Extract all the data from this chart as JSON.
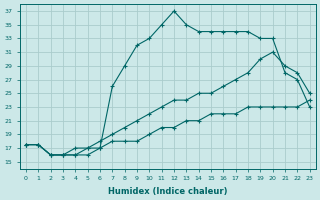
{
  "xlabel": "Humidex (Indice chaleur)",
  "bg_color": "#cce8e8",
  "grid_color": "#aacccc",
  "line_color": "#006666",
  "xlim": [
    -0.5,
    23.5
  ],
  "ylim": [
    14.0,
    38.0
  ],
  "xticks": [
    0,
    1,
    2,
    3,
    4,
    5,
    6,
    7,
    8,
    9,
    10,
    11,
    12,
    13,
    14,
    15,
    16,
    17,
    18,
    19,
    20,
    21,
    22,
    23
  ],
  "yticks": [
    15,
    17,
    19,
    21,
    23,
    25,
    27,
    29,
    31,
    33,
    35,
    37
  ],
  "line1_x": [
    0,
    1,
    2,
    3,
    4,
    5,
    6,
    7,
    8,
    9,
    10,
    11,
    12,
    13,
    14,
    15,
    16,
    17,
    18,
    19,
    20,
    21,
    22,
    23
  ],
  "line1_y": [
    17.5,
    17.5,
    16,
    16,
    16,
    16,
    17,
    26,
    29,
    32,
    33,
    35,
    37,
    35,
    34,
    34,
    34,
    34,
    34,
    33,
    33,
    28,
    27,
    23
  ],
  "line2_x": [
    0,
    1,
    2,
    3,
    4,
    5,
    6,
    7,
    8,
    9,
    10,
    11,
    12,
    13,
    14,
    15,
    16,
    17,
    18,
    19,
    20,
    21,
    22,
    23
  ],
  "line2_y": [
    17.5,
    17.5,
    16,
    16,
    16,
    17,
    18,
    19,
    20,
    21,
    22,
    23,
    24,
    24,
    25,
    25,
    26,
    27,
    28,
    30,
    31,
    29,
    28,
    25
  ],
  "line3_x": [
    0,
    1,
    2,
    3,
    4,
    5,
    6,
    7,
    8,
    9,
    10,
    11,
    12,
    13,
    14,
    15,
    16,
    17,
    18,
    19,
    20,
    21,
    22,
    23
  ],
  "line3_y": [
    17.5,
    17.5,
    16,
    16,
    17,
    17,
    17,
    18,
    18,
    18,
    19,
    20,
    20,
    21,
    21,
    22,
    22,
    22,
    23,
    23,
    23,
    23,
    23,
    24
  ]
}
